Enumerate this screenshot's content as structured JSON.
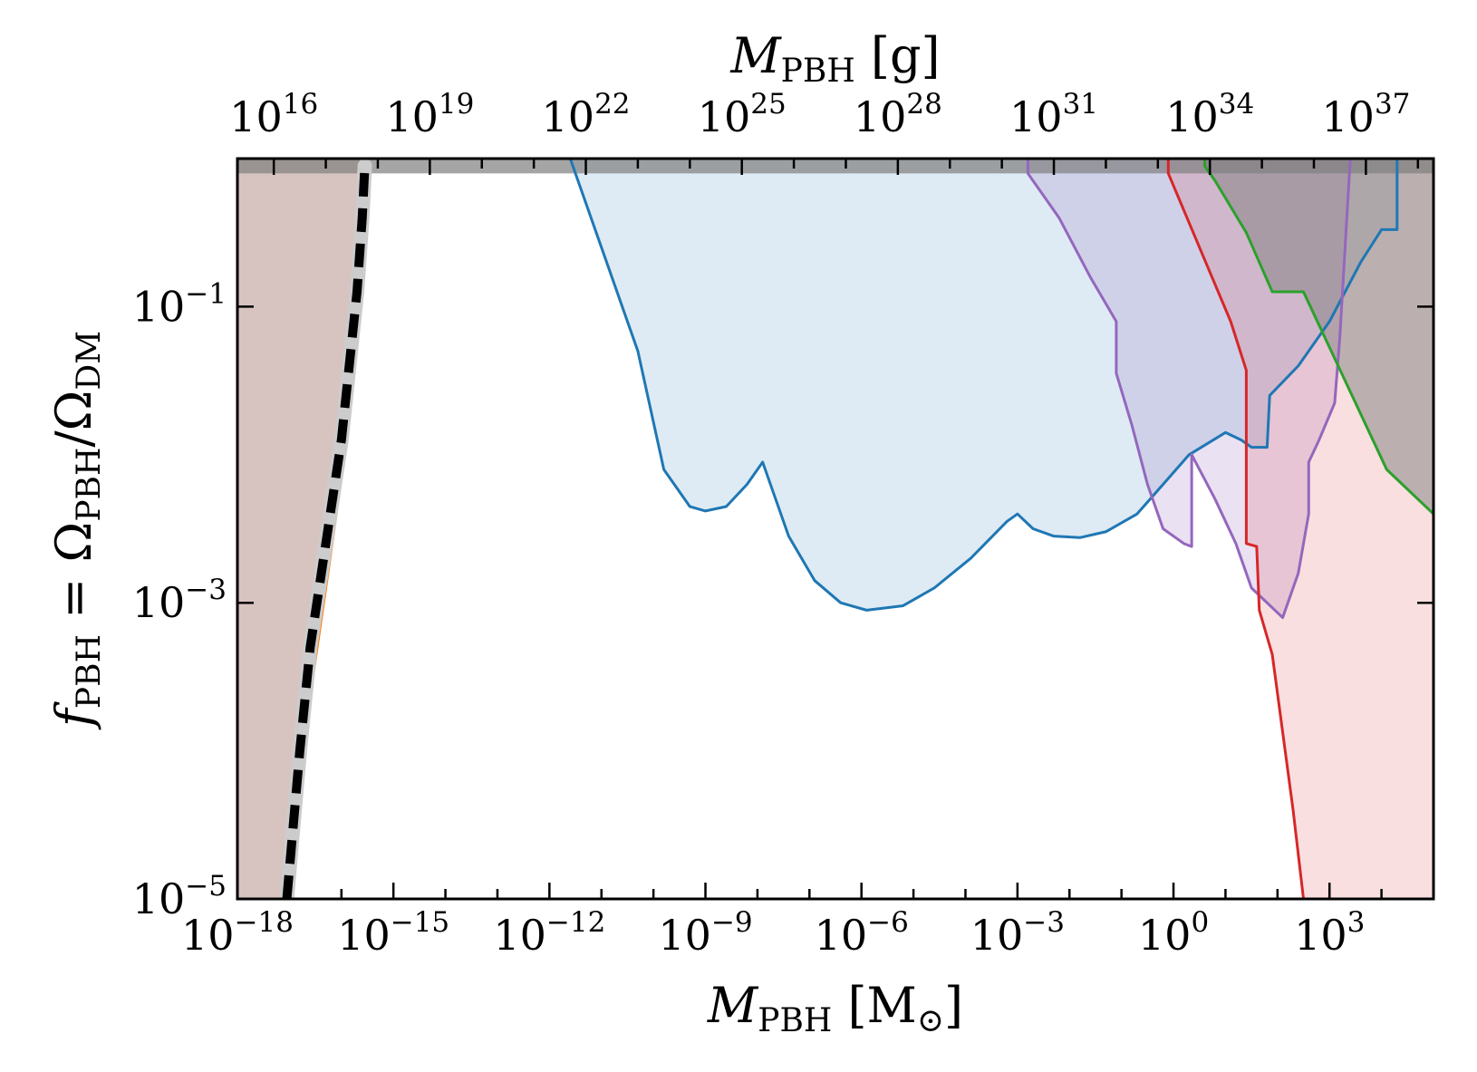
{
  "chart_data": {
    "type": "area",
    "xlabel": {
      "symbol": "M",
      "sub": "PBH",
      "unit": "[M",
      "unit_sub": "⊙",
      "unit_close": "]"
    },
    "top_xlabel": {
      "symbol": "M",
      "sub": "PBH",
      "unit": "[g]"
    },
    "ylabel": {
      "symbol": "f",
      "sub": "PBH",
      "rest": " = Ω",
      "sub2": "PBH",
      "mid": "/Ω",
      "sub3": "DM"
    },
    "x_scale": "log",
    "y_scale": "log",
    "xlim_log10_Msun": [
      -18,
      5
    ],
    "ylim_log10": [
      -5,
      0
    ],
    "x_ticks": [
      {
        "base": "10",
        "exp": "−18",
        "log10": -18
      },
      {
        "base": "10",
        "exp": "−15",
        "log10": -15
      },
      {
        "base": "10",
        "exp": "−12",
        "log10": -12
      },
      {
        "base": "10",
        "exp": "−9",
        "log10": -9
      },
      {
        "base": "10",
        "exp": "−6",
        "log10": -6
      },
      {
        "base": "10",
        "exp": "−3",
        "log10": -3
      },
      {
        "base": "10",
        "exp": "0",
        "log10": 0
      },
      {
        "base": "10",
        "exp": "3",
        "log10": 3
      }
    ],
    "top_x_ticks": [
      {
        "base": "10",
        "exp": "16",
        "log10": 16
      },
      {
        "base": "10",
        "exp": "19",
        "log10": 19
      },
      {
        "base": "10",
        "exp": "22",
        "log10": 22
      },
      {
        "base": "10",
        "exp": "25",
        "log10": 25
      },
      {
        "base": "10",
        "exp": "28",
        "log10": 28
      },
      {
        "base": "10",
        "exp": "31",
        "log10": 31
      },
      {
        "base": "10",
        "exp": "34",
        "log10": 34
      },
      {
        "base": "10",
        "exp": "37",
        "log10": 37
      }
    ],
    "top_axis_offset_log10_g": 33.3,
    "y_ticks": [
      {
        "base": "10",
        "exp": "−1",
        "log10": -1
      },
      {
        "base": "10",
        "exp": "−3",
        "log10": -3
      },
      {
        "base": "10",
        "exp": "−5",
        "log10": -5
      }
    ],
    "top_band": {
      "from_log10": -0.1,
      "to_log10": 0,
      "color": "#7f7f7f"
    },
    "series": [
      {
        "id": "evaporation",
        "color": "#ff7f0e",
        "fill": "#8c564b",
        "fill_opacity": 0.35,
        "fill_side": "left",
        "points": [
          [
            -17.1,
            -5
          ],
          [
            -16.8,
            -4.1
          ],
          [
            -16.3,
            -2.9
          ],
          [
            -15.9,
            -1.9
          ],
          [
            -15.6,
            -0.8
          ],
          [
            -15.55,
            0
          ]
        ]
      },
      {
        "id": "lensing",
        "color": "#1f77b4",
        "fill": "#1f77b4",
        "fill_opacity": 0.15,
        "points": [
          [
            -11.6,
            0
          ],
          [
            -11,
            -0.6
          ],
          [
            -10.3,
            -1.3
          ],
          [
            -9.8,
            -2.1
          ],
          [
            -9.3,
            -2.35
          ],
          [
            -9,
            -2.38
          ],
          [
            -8.6,
            -2.35
          ],
          [
            -8.2,
            -2.2
          ],
          [
            -7.9,
            -2.05
          ],
          [
            -7.8,
            -2.15
          ],
          [
            -7.4,
            -2.55
          ],
          [
            -6.9,
            -2.85
          ],
          [
            -6.4,
            -3.0
          ],
          [
            -5.9,
            -3.05
          ],
          [
            -5.2,
            -3.02
          ],
          [
            -4.6,
            -2.9
          ],
          [
            -3.9,
            -2.7
          ],
          [
            -3.2,
            -2.45
          ],
          [
            -3.0,
            -2.4
          ],
          [
            -2.7,
            -2.5
          ],
          [
            -2.3,
            -2.55
          ],
          [
            -1.8,
            -2.56
          ],
          [
            -1.3,
            -2.52
          ],
          [
            -0.7,
            -2.4
          ],
          [
            -0.2,
            -2.2
          ],
          [
            0.3,
            -2.0
          ],
          [
            1.0,
            -1.85
          ],
          [
            1.3,
            -1.9
          ],
          [
            1.5,
            -1.95
          ],
          [
            1.8,
            -1.95
          ],
          [
            1.85,
            -1.6
          ],
          [
            2.4,
            -1.4
          ],
          [
            3.0,
            -1.1
          ],
          [
            3.6,
            -0.7
          ],
          [
            4.0,
            -0.48
          ],
          [
            4.3,
            -0.48
          ],
          [
            4.3,
            0
          ]
        ]
      },
      {
        "id": "microlensing-purple",
        "color": "#9467bd",
        "fill": "#9467bd",
        "fill_opacity": 0.2,
        "points": [
          [
            -2.8,
            0
          ],
          [
            -2.8,
            -0.1
          ],
          [
            -2.2,
            -0.4
          ],
          [
            -1.6,
            -0.8
          ],
          [
            -1.1,
            -1.1
          ],
          [
            -1.1,
            -1.45
          ],
          [
            -0.8,
            -1.8
          ],
          [
            -0.5,
            -2.2
          ],
          [
            -0.2,
            -2.5
          ],
          [
            0.2,
            -2.6
          ],
          [
            0.35,
            -2.62
          ],
          [
            0.35,
            -2.0
          ],
          [
            0.8,
            -2.3
          ],
          [
            1.2,
            -2.6
          ],
          [
            1.5,
            -2.9
          ],
          [
            2.1,
            -3.1
          ],
          [
            2.4,
            -2.8
          ],
          [
            2.6,
            -2.4
          ],
          [
            2.6,
            -2.05
          ],
          [
            2.8,
            -1.9
          ],
          [
            3.1,
            -1.65
          ],
          [
            3.2,
            -1.2
          ],
          [
            3.3,
            -0.6
          ],
          [
            3.4,
            0
          ]
        ]
      },
      {
        "id": "dynamical-red",
        "color": "#d62728",
        "fill": "#d62728",
        "fill_opacity": 0.15,
        "points": [
          [
            -0.1,
            0
          ],
          [
            -0.1,
            -0.1
          ],
          [
            0.5,
            -0.6
          ],
          [
            1.1,
            -1.1
          ],
          [
            1.4,
            -1.43
          ],
          [
            1.4,
            -2.6
          ],
          [
            1.6,
            -2.62
          ],
          [
            1.65,
            -3.05
          ],
          [
            1.9,
            -3.35
          ],
          [
            2.3,
            -4.4
          ],
          [
            2.5,
            -5
          ],
          [
            5,
            -5
          ],
          [
            5,
            0
          ]
        ]
      },
      {
        "id": "cmb-green",
        "color": "#2ca02c",
        "fill": "#7f7f7f",
        "fill_opacity": 0.5,
        "points": [
          [
            0.6,
            0
          ],
          [
            0.6,
            -0.05
          ],
          [
            0.8,
            -0.15
          ],
          [
            1.4,
            -0.5
          ],
          [
            1.9,
            -0.9
          ],
          [
            2.5,
            -0.9
          ],
          [
            3.3,
            -1.5
          ],
          [
            4.1,
            -2.1
          ],
          [
            5,
            -2.4
          ],
          [
            5,
            0
          ]
        ]
      }
    ],
    "bound": {
      "id": "dashed-bound",
      "color": "#000000",
      "style": "dashed",
      "glow": "#cccccc",
      "points": [
        [
          -17.05,
          -5
        ],
        [
          -16.8,
          -4.0
        ],
        [
          -16.6,
          -3.3
        ],
        [
          -16.3,
          -2.6
        ],
        [
          -16.0,
          -1.9
        ],
        [
          -15.7,
          -0.9
        ],
        [
          -15.6,
          -0.4
        ],
        [
          -15.55,
          -0.05
        ]
      ]
    }
  }
}
